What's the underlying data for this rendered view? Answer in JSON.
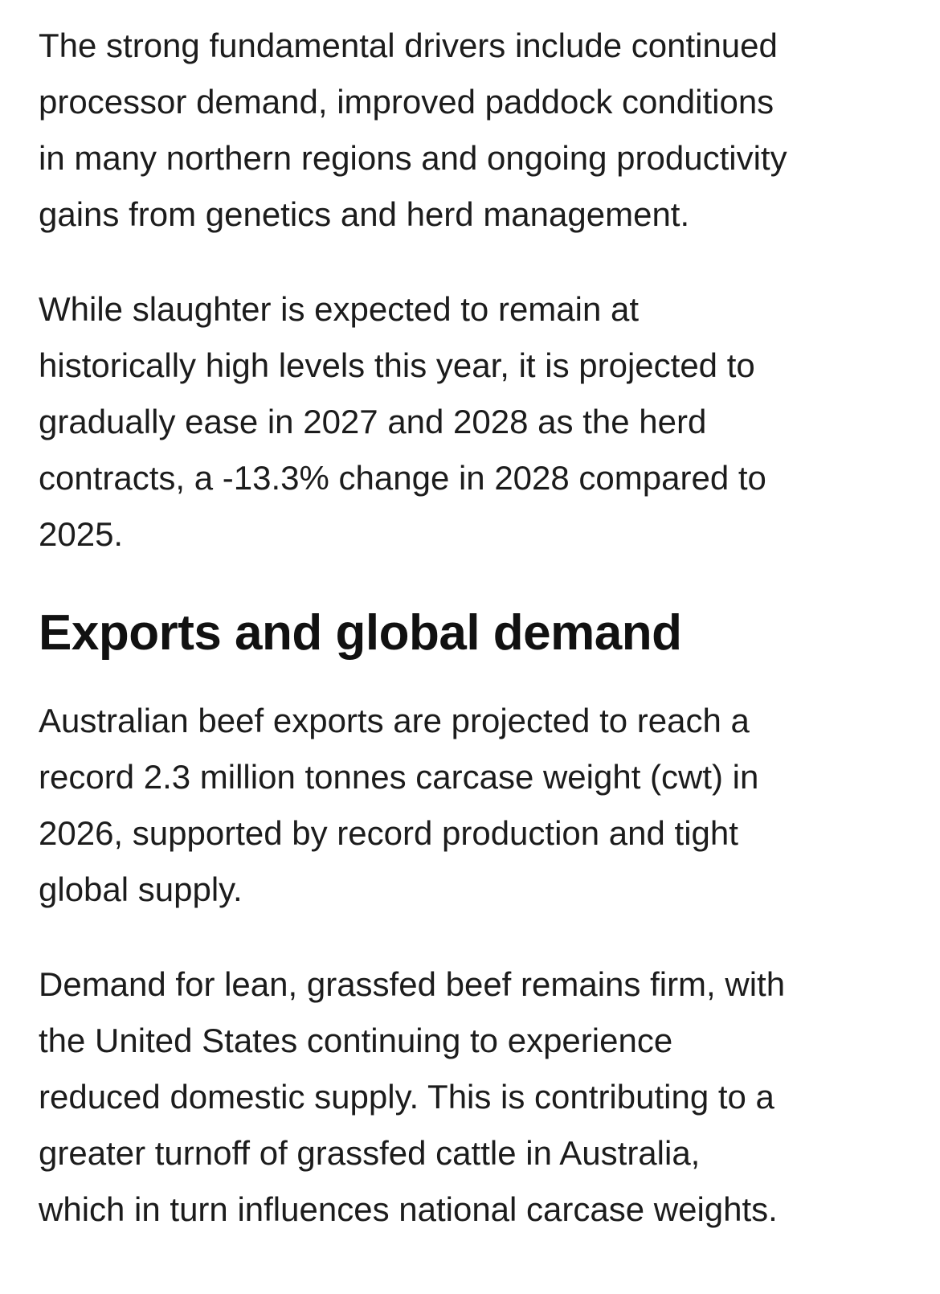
{
  "article": {
    "paragraphs_before": [
      {
        "lines": [
          "The strong fundamental drivers include continued",
          "processor demand, improved paddock conditions",
          "in many northern regions and ongoing productivity",
          "gains from genetics and herd management."
        ]
      },
      {
        "lines": [
          "While slaughter is expected to remain at",
          "historically high levels this year, it is projected to",
          "gradually ease in 2027 and 2028 as the herd",
          "contracts, a -13.3% change in 2028 compared to",
          "2025."
        ]
      }
    ],
    "heading": "Exports and global demand",
    "paragraphs_after": [
      {
        "lines": [
          "Australian beef exports are projected to reach a",
          "record 2.3 million tonnes carcase weight (cwt) in",
          "2026, supported by record production and tight",
          "global supply."
        ]
      },
      {
        "lines": [
          "Demand for lean, grassfed beef remains firm, with",
          "the United States continuing to experience",
          "reduced domestic supply. This is contributing to a",
          "greater turnoff of grassfed cattle in Australia,",
          "which in turn influences national carcase weights."
        ]
      }
    ]
  }
}
